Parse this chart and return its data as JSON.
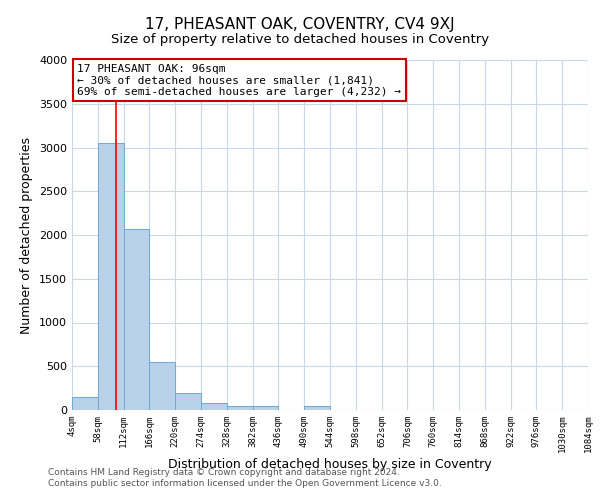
{
  "title": "17, PHEASANT OAK, COVENTRY, CV4 9XJ",
  "subtitle": "Size of property relative to detached houses in Coventry",
  "xlabel": "Distribution of detached houses by size in Coventry",
  "ylabel": "Number of detached properties",
  "bin_edges": [
    4,
    58,
    112,
    166,
    220,
    274,
    328,
    382,
    436,
    490,
    544,
    598,
    652,
    706,
    760,
    814,
    868,
    922,
    976,
    1030,
    1084
  ],
  "bar_heights": [
    150,
    3050,
    2070,
    550,
    200,
    75,
    50,
    50,
    0,
    50,
    0,
    0,
    0,
    0,
    0,
    0,
    0,
    0,
    0,
    0
  ],
  "bar_color": "#b8d0e8",
  "bar_edgecolor": "#6aaad4",
  "red_line_x": 96,
  "ylim": [
    0,
    4000
  ],
  "yticks": [
    0,
    500,
    1000,
    1500,
    2000,
    2500,
    3000,
    3500,
    4000
  ],
  "annotation_title": "17 PHEASANT OAK: 96sqm",
  "annotation_line1": "← 30% of detached houses are smaller (1,841)",
  "annotation_line2": "69% of semi-detached houses are larger (4,232) →",
  "annotation_box_color": "#ffffff",
  "annotation_box_edgecolor": "#cc0000",
  "footer_line1": "Contains HM Land Registry data © Crown copyright and database right 2024.",
  "footer_line2": "Contains public sector information licensed under the Open Government Licence v3.0.",
  "background_color": "#ffffff",
  "grid_color": "#c8d8e8",
  "title_fontsize": 11,
  "subtitle_fontsize": 9.5
}
